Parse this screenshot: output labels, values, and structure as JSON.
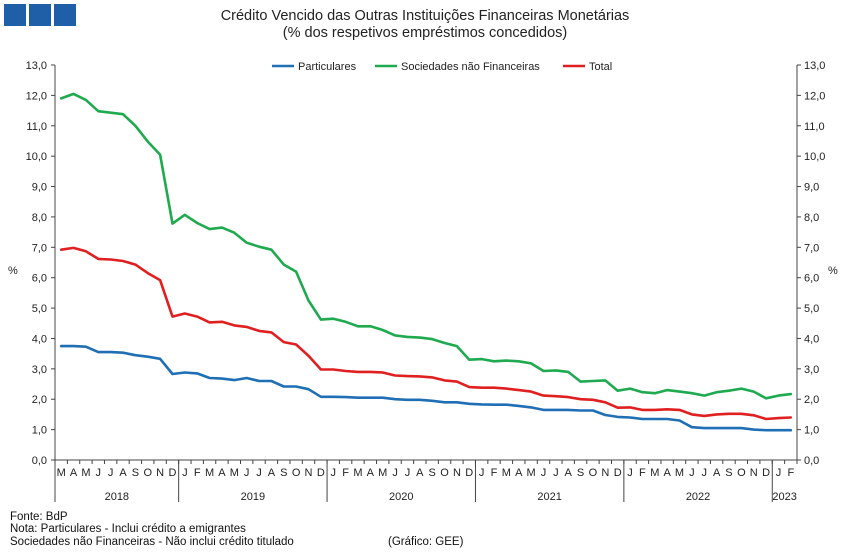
{
  "header": {
    "logo_icon": "bank-logo-squares",
    "brand_color": "#1f5fa8"
  },
  "chart_data": {
    "type": "line",
    "title": "Crédito Vencido das Outras Instituições Financeiras Monetárias",
    "subtitle": "(% dos respetivos empréstimos concedidos)",
    "ylabel_left": "%",
    "ylabel_right": "%",
    "ylim": [
      0,
      13
    ],
    "ytick_values": [
      0,
      1,
      2,
      3,
      4,
      5,
      6,
      7,
      8,
      9,
      10,
      11,
      12,
      13
    ],
    "ytick_labels": [
      "0,0",
      "1,0",
      "2,0",
      "3,0",
      "4,0",
      "5,0",
      "6,0",
      "7,0",
      "8,0",
      "9,0",
      "10,0",
      "11,0",
      "12,0",
      "13,0"
    ],
    "grid": false,
    "legend_position": "top-center",
    "month_letters": [
      "M",
      "A",
      "M",
      "J",
      "J",
      "A",
      "S",
      "O",
      "N",
      "D",
      "J",
      "F",
      "M",
      "A",
      "M",
      "J",
      "J",
      "A",
      "S",
      "O",
      "N",
      "D",
      "J",
      "F",
      "M",
      "A",
      "M",
      "J",
      "J",
      "A",
      "S",
      "O",
      "N",
      "D",
      "J",
      "F",
      "M",
      "A",
      "M",
      "J",
      "J",
      "A",
      "S",
      "O",
      "N",
      "D",
      "J",
      "F",
      "M",
      "A",
      "M",
      "J",
      "J",
      "A",
      "S",
      "O",
      "N",
      "D",
      "J",
      "F"
    ],
    "years": [
      {
        "label": "2018",
        "start": 0,
        "end": 10
      },
      {
        "label": "2019",
        "start": 10,
        "end": 22
      },
      {
        "label": "2020",
        "start": 22,
        "end": 34
      },
      {
        "label": "2021",
        "start": 34,
        "end": 46
      },
      {
        "label": "2022",
        "start": 46,
        "end": 58
      },
      {
        "label": "2023",
        "start": 58,
        "end": 60
      }
    ],
    "series": [
      {
        "name": "Particulares",
        "color": "#1f6fb5",
        "values": [
          3.75,
          3.75,
          3.73,
          3.55,
          3.55,
          3.53,
          3.45,
          3.4,
          3.33,
          2.83,
          2.88,
          2.85,
          2.7,
          2.68,
          2.63,
          2.7,
          2.6,
          2.6,
          2.42,
          2.42,
          2.33,
          2.08,
          2.08,
          2.07,
          2.05,
          2.05,
          2.05,
          2.0,
          1.98,
          1.98,
          1.95,
          1.9,
          1.9,
          1.85,
          1.83,
          1.82,
          1.82,
          1.78,
          1.73,
          1.65,
          1.65,
          1.65,
          1.63,
          1.63,
          1.48,
          1.42,
          1.4,
          1.35,
          1.35,
          1.35,
          1.3,
          1.08,
          1.05,
          1.05,
          1.05,
          1.05,
          1.0,
          0.98,
          0.98,
          0.98
        ]
      },
      {
        "name": "Sociedades não Financeiras",
        "color": "#1faa4f",
        "values": [
          11.9,
          12.05,
          11.85,
          11.48,
          11.43,
          11.38,
          11.0,
          10.48,
          10.05,
          7.78,
          8.07,
          7.8,
          7.6,
          7.65,
          7.48,
          7.15,
          7.02,
          6.92,
          6.43,
          6.2,
          5.25,
          4.62,
          4.65,
          4.55,
          4.4,
          4.4,
          4.28,
          4.1,
          4.05,
          4.03,
          3.98,
          3.85,
          3.75,
          3.3,
          3.32,
          3.25,
          3.27,
          3.25,
          3.18,
          2.93,
          2.95,
          2.9,
          2.58,
          2.6,
          2.62,
          2.28,
          2.35,
          2.23,
          2.2,
          2.3,
          2.25,
          2.2,
          2.12,
          2.23,
          2.28,
          2.35,
          2.25,
          2.03,
          2.12,
          2.17
        ]
      },
      {
        "name": "Total",
        "color": "#e02020",
        "values": [
          6.92,
          6.98,
          6.87,
          6.62,
          6.6,
          6.55,
          6.43,
          6.15,
          5.92,
          4.72,
          4.82,
          4.72,
          4.53,
          4.55,
          4.43,
          4.38,
          4.25,
          4.2,
          3.88,
          3.8,
          3.43,
          2.98,
          2.98,
          2.93,
          2.9,
          2.9,
          2.88,
          2.78,
          2.76,
          2.75,
          2.72,
          2.62,
          2.58,
          2.4,
          2.38,
          2.38,
          2.35,
          2.3,
          2.25,
          2.12,
          2.1,
          2.07,
          2.0,
          1.98,
          1.9,
          1.72,
          1.73,
          1.65,
          1.65,
          1.67,
          1.65,
          1.5,
          1.45,
          1.5,
          1.52,
          1.52,
          1.47,
          1.35,
          1.38,
          1.4
        ]
      }
    ]
  },
  "footer": {
    "source": "Fonte: BdP",
    "note1": "Nota: Particulares - Inclui crédito a emigrantes",
    "note2": "Sociedades não Financeiras - Não inclui crédito titulado",
    "credit": "(Gráfico: GEE)"
  }
}
